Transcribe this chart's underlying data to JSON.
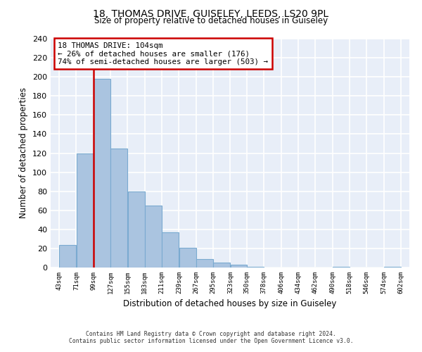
{
  "title": "18, THOMAS DRIVE, GUISELEY, LEEDS, LS20 9PL",
  "subtitle": "Size of property relative to detached houses in Guiseley",
  "xlabel": "Distribution of detached houses by size in Guiseley",
  "ylabel": "Number of detached properties",
  "bin_edges": [
    43,
    71,
    99,
    127,
    155,
    183,
    211,
    239,
    267,
    295,
    323,
    350,
    378,
    406,
    434,
    462,
    490,
    518,
    546,
    574,
    602
  ],
  "bin_labels": [
    "43sqm",
    "71sqm",
    "99sqm",
    "127sqm",
    "155sqm",
    "183sqm",
    "211sqm",
    "239sqm",
    "267sqm",
    "295sqm",
    "323sqm",
    "350sqm",
    "378sqm",
    "406sqm",
    "434sqm",
    "462sqm",
    "490sqm",
    "518sqm",
    "546sqm",
    "574sqm",
    "602sqm"
  ],
  "counts": [
    24,
    120,
    198,
    125,
    80,
    65,
    37,
    21,
    9,
    5,
    3,
    1,
    0,
    0,
    0,
    0,
    1,
    0,
    0,
    1
  ],
  "bar_color": "#aac4e0",
  "bar_edge_color": "#7aaad0",
  "vline_x": 99,
  "vline_color": "#cc0000",
  "annotation_title": "18 THOMAS DRIVE: 104sqm",
  "annotation_line1": "← 26% of detached houses are smaller (176)",
  "annotation_line2": "74% of semi-detached houses are larger (503) →",
  "annotation_box_color": "#ffffff",
  "annotation_box_edge_color": "#cc0000",
  "ylim": [
    0,
    240
  ],
  "yticks": [
    0,
    20,
    40,
    60,
    80,
    100,
    120,
    140,
    160,
    180,
    200,
    220,
    240
  ],
  "background_color": "#e8eef8",
  "footnote1": "Contains HM Land Registry data © Crown copyright and database right 2024.",
  "footnote2": "Contains public sector information licensed under the Open Government Licence v3.0."
}
